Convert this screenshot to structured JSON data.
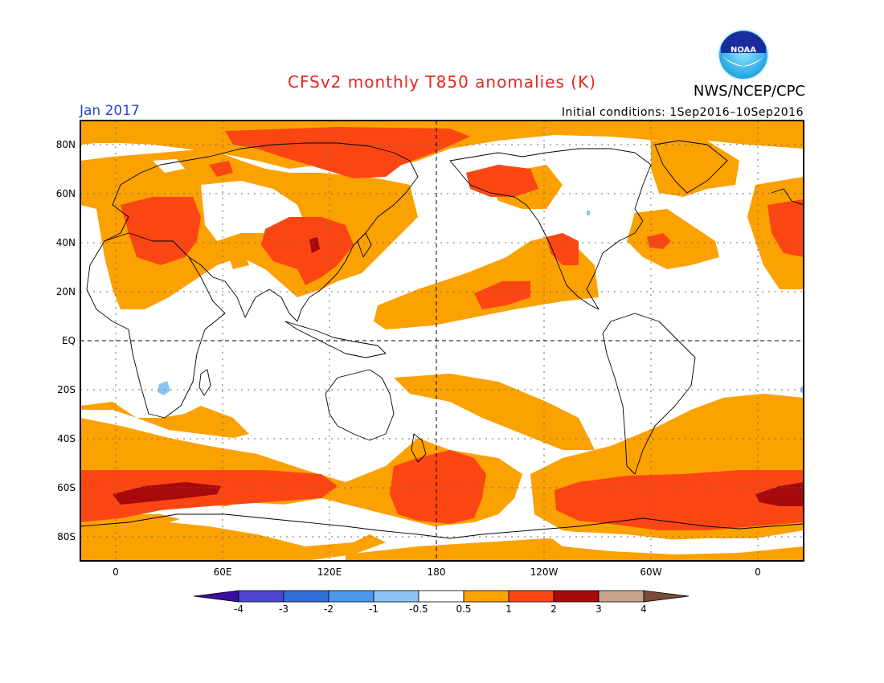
{
  "header": {
    "title": "CFSv2 monthly T850 anomalies (K)",
    "agency": "NWS/NCEP/CPC",
    "logo_text": "NOAA",
    "month": "Jan 2017",
    "initial_conditions": "Initial conditions: 1Sep2016–10Sep2016"
  },
  "map": {
    "projection": "cylindrical equidistant",
    "lon_center": "180",
    "lat_labels": [
      "80N",
      "60N",
      "40N",
      "20N",
      "EQ",
      "20S",
      "40S",
      "60S",
      "80S"
    ],
    "lon_labels": [
      "0",
      "60E",
      "120E",
      "180",
      "120W",
      "60W",
      "0"
    ],
    "grid": "dotted",
    "reference_lines": [
      "EQ",
      "180"
    ]
  },
  "colorbar": {
    "units": "K",
    "levels": [
      "-4",
      "-3",
      "-2",
      "-1",
      "-0.5",
      "0.5",
      "1",
      "2",
      "3",
      "4"
    ],
    "colors": [
      "#3a0fa0",
      "#4b45d2",
      "#2f6fd9",
      "#4d97ee",
      "#8cc3f4",
      "#ffffff",
      "#fba100",
      "#fb4614",
      "#a60a0a",
      "#c6a28e",
      "#7a4a3a"
    ]
  },
  "colors": {
    "warm_05_1": "#fba100",
    "warm_1_2": "#fb4614",
    "warm_2_3": "#a60a0a",
    "cool_m05_m1": "#8cc3f4",
    "title_red": "#e8251d",
    "month_blue": "#2946c4"
  }
}
